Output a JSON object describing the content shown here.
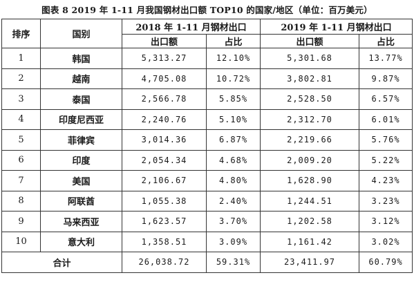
{
  "caption": "图表 8   2019 年 1-11 月我国钢材出口额 TOP10 的国家/地区（单位：百万美元）",
  "headers": {
    "rank": "排序",
    "country": "国别",
    "period_2018": "2018 年 1-11 月钢材出口",
    "period_2019": "2019 年 1-11 月钢材出口",
    "export_2018": "出口额",
    "share_2018": "占比",
    "export_2019": "出口额",
    "share_2019": "占比"
  },
  "rows": [
    {
      "rank": "1",
      "country": "韩国",
      "export_2018": "5,313.27",
      "share_2018": "12.10%",
      "export_2019": "5,301.68",
      "share_2019": "13.77%"
    },
    {
      "rank": "2",
      "country": "越南",
      "export_2018": "4,705.08",
      "share_2018": "10.72%",
      "export_2019": "3,802.81",
      "share_2019": "9.87%"
    },
    {
      "rank": "3",
      "country": "泰国",
      "export_2018": "2,566.78",
      "share_2018": "5.85%",
      "export_2019": "2,528.50",
      "share_2019": "6.57%"
    },
    {
      "rank": "4",
      "country": "印度尼西亚",
      "export_2018": "2,240.76",
      "share_2018": "5.10%",
      "export_2019": "2,312.70",
      "share_2019": "6.01%"
    },
    {
      "rank": "5",
      "country": "菲律宾",
      "export_2018": "3,014.36",
      "share_2018": "6.87%",
      "export_2019": "2,219.66",
      "share_2019": "5.76%"
    },
    {
      "rank": "6",
      "country": "印度",
      "export_2018": "2,054.34",
      "share_2018": "4.68%",
      "export_2019": "2,009.20",
      "share_2019": "5.22%"
    },
    {
      "rank": "7",
      "country": "美国",
      "export_2018": "2,106.67",
      "share_2018": "4.80%",
      "export_2019": "1,628.90",
      "share_2019": "4.23%"
    },
    {
      "rank": "8",
      "country": "阿联酋",
      "export_2018": "1,055.38",
      "share_2018": "2.40%",
      "export_2019": "1,244.51",
      "share_2019": "3.23%"
    },
    {
      "rank": "9",
      "country": "马来西亚",
      "export_2018": "1,623.57",
      "share_2018": "3.70%",
      "export_2019": "1,202.58",
      "share_2019": "3.12%"
    },
    {
      "rank": "10",
      "country": "意大利",
      "export_2018": "1,358.51",
      "share_2018": "3.09%",
      "export_2019": "1,161.42",
      "share_2019": "3.02%"
    }
  ],
  "total": {
    "label": "合计",
    "export_2018": "26,038.72",
    "share_2018": "59.31%",
    "export_2019": "23,411.97",
    "share_2019": "60.79%"
  }
}
